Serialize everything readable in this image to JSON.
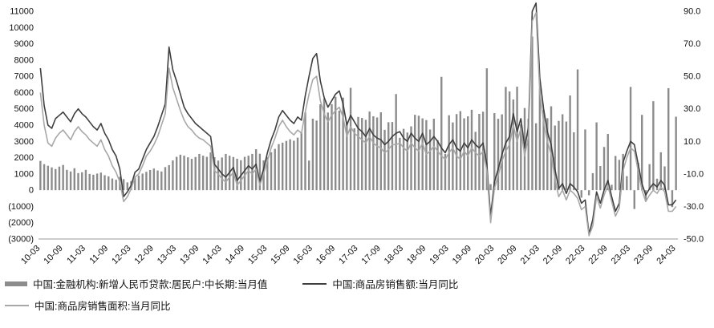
{
  "chart_data": {
    "type": "bar",
    "subtype": "combo-bar-line",
    "title": "",
    "grid": false,
    "legend_position": "bottom-left",
    "x_tick_labels": [
      "10-03",
      "10-09",
      "11-03",
      "11-09",
      "12-03",
      "12-09",
      "13-03",
      "13-09",
      "14-03",
      "14-09",
      "15-03",
      "15-09",
      "16-03",
      "16-09",
      "17-03",
      "17-09",
      "18-03",
      "18-09",
      "19-03",
      "19-09",
      "20-03",
      "20-09",
      "21-03",
      "21-09",
      "22-03",
      "22-09",
      "23-03",
      "23-09",
      "24-03"
    ],
    "x_tick_interval": 6,
    "left_axis": {
      "min": -3000,
      "max": 11000,
      "step": 1000,
      "labels": [
        "11000",
        "10000",
        "9000",
        "8000",
        "7000",
        "6000",
        "5000",
        "4000",
        "3000",
        "2000",
        "1000",
        "0",
        "(1000)",
        "(2000)",
        "(3000)"
      ]
    },
    "right_axis": {
      "min": -50,
      "max": 90,
      "step": 20,
      "labels": [
        "90.0",
        "70.0",
        "50.0",
        "30.0",
        "10.0",
        "-10.0",
        "-30.0",
        "-50.0"
      ]
    },
    "series": [
      {
        "name": "中国:金融机构:新增人民币贷款:居民户:中长期:当月值",
        "type": "bar",
        "axis": "left",
        "color": "#8c8c8c",
        "values": [
          1800,
          1600,
          1500,
          1400,
          1300,
          1450,
          1550,
          1250,
          1150,
          1350,
          1050,
          1100,
          1250,
          1000,
          950,
          1020,
          1080,
          920,
          850,
          720,
          640,
          820,
          680,
          480,
          560,
          780,
          900,
          1020,
          1130,
          1240,
          1330,
          1210,
          1150,
          1420,
          1540,
          1830,
          2050,
          2180,
          2120,
          2020,
          1930,
          2040,
          2230,
          2120,
          2050,
          2320,
          2030,
          1820,
          2010,
          2230,
          2120,
          2040,
          1930,
          1840,
          2050,
          2120,
          2230,
          2520,
          2240,
          1830,
          2040,
          2330,
          2540,
          2830,
          2920,
          3030,
          3130,
          3040,
          3230,
          3540,
          4783,
          1820,
          4397,
          4280,
          5281,
          5639,
          4773,
          5286,
          5741,
          4891,
          5692,
          4217,
          6293,
          3804,
          4503,
          4441,
          4326,
          4833,
          4544,
          4470,
          4786,
          3710,
          4178,
          4193,
          5910,
          3220,
          3770,
          3543,
          3923,
          4634,
          4576,
          4415,
          4309,
          3730,
          4391,
          3079,
          6969,
          2226,
          4605,
          4165,
          4677,
          4858,
          4417,
          4540,
          4943,
          3587,
          4689,
          4824,
          7491,
          371,
          4738,
          4389,
          4662,
          6349,
          6067,
          5571,
          6362,
          4059,
          5049,
          4392,
          9448,
          4113,
          6239,
          4918,
          4426,
          5156,
          3974,
          4259,
          4667,
          4221,
          5821,
          3558,
          7424,
          -459,
          3735,
          -314,
          1047,
          4167,
          1486,
          2658,
          3456,
          332,
          2103,
          1865,
          2231,
          863,
          6348,
          -1156,
          1684,
          4630,
          -672,
          1602,
          5470,
          707,
          2331,
          1462,
          6272,
          -1038,
          4516
        ]
      },
      {
        "name": "中国:商品房销售额:当月同比",
        "type": "line",
        "axis": "right",
        "color": "#3f3f3f",
        "values": [
          55,
          32,
          20,
          18,
          24,
          26,
          28,
          25,
          22,
          27,
          30,
          27,
          25,
          22,
          19,
          17,
          21,
          15,
          11,
          5,
          1,
          -7,
          -24,
          -21,
          -17,
          -9,
          -7,
          -1,
          5,
          9,
          13,
          19,
          26,
          33,
          68,
          54,
          47,
          39,
          31,
          27,
          24,
          21,
          19,
          17,
          15,
          13,
          -4,
          -7,
          -10,
          -12,
          -9,
          -6,
          -14,
          -11,
          -8,
          -5,
          -7,
          -4,
          -15,
          -7,
          3,
          11,
          17,
          25,
          29,
          26,
          23,
          21,
          25,
          23,
          38,
          50,
          61,
          64,
          47,
          37,
          31,
          35,
          39,
          41,
          33,
          20,
          26,
          22,
          18,
          16,
          13,
          18,
          14,
          12,
          11,
          8,
          10,
          13,
          15,
          16,
          12,
          10,
          15,
          12,
          10,
          15,
          8,
          10,
          13,
          10,
          6,
          3,
          8,
          11,
          6,
          4,
          9,
          6,
          11,
          8,
          6,
          9,
          -4,
          -36,
          -15,
          -7,
          2,
          9,
          13,
          27,
          16,
          24,
          6,
          19,
          90,
          95,
          49,
          30,
          16,
          8,
          -7,
          -19,
          -16,
          -22,
          -16,
          -18,
          -21,
          -28,
          -26,
          -47,
          -38,
          -21,
          -28,
          -20,
          -14,
          -24,
          -33,
          -28,
          -3,
          4,
          10,
          8,
          -4,
          -16,
          -23,
          -19,
          -16,
          -18,
          -14,
          -17,
          -29,
          -29,
          -26
        ]
      },
      {
        "name": "中国:商品房销售面积:当月同比",
        "type": "line",
        "axis": "right",
        "color": "#a8a8a8",
        "values": [
          40,
          20,
          9,
          7,
          12,
          15,
          17,
          14,
          11,
          16,
          19,
          16,
          14,
          11,
          9,
          7,
          11,
          5,
          1,
          -5,
          -9,
          -15,
          -27,
          -24,
          -19,
          -12,
          -10,
          -5,
          1,
          4,
          8,
          13,
          20,
          27,
          55,
          43,
          36,
          29,
          23,
          19,
          17,
          14,
          12,
          11,
          9,
          7,
          -8,
          -10,
          -13,
          -15,
          -12,
          -9,
          -17,
          -14,
          -11,
          -8,
          -10,
          -7,
          -17,
          -10,
          -2,
          6,
          12,
          19,
          23,
          19,
          16,
          14,
          17,
          15,
          28,
          39,
          48,
          50,
          35,
          27,
          22,
          26,
          29,
          31,
          25,
          13,
          19,
          15,
          13,
          11,
          9,
          13,
          9,
          7,
          6,
          3,
          5,
          8,
          8,
          9,
          6,
          4,
          9,
          6,
          4,
          9,
          2,
          4,
          7,
          4,
          1,
          -1,
          3,
          6,
          1,
          -1,
          4,
          1,
          6,
          3,
          1,
          4,
          -8,
          -40,
          -19,
          -11,
          -2,
          4,
          8,
          20,
          10,
          18,
          1,
          13,
          84,
          89,
          40,
          22,
          10,
          2,
          -13,
          -24,
          -20,
          -26,
          -20,
          -22,
          -25,
          -32,
          -30,
          -48,
          -42,
          -24,
          -31,
          -23,
          -17,
          -27,
          -36,
          -31,
          -8,
          0,
          6,
          4,
          -8,
          -20,
          -27,
          -23,
          -20,
          -22,
          -18,
          -21,
          -33,
          -33,
          -30
        ]
      }
    ]
  },
  "legend": {
    "items": [
      {
        "label": "中国:金融机构:新增人民币贷款:居民户:中长期:当月值"
      },
      {
        "label": "中国:商品房销售额:当月同比"
      },
      {
        "label": "中国:商品房销售面积:当月同比"
      }
    ]
  }
}
